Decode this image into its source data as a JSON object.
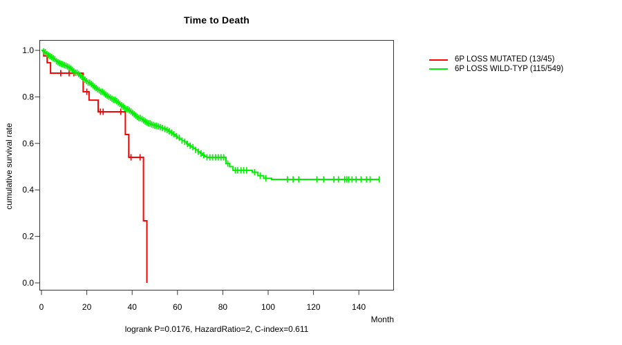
{
  "title": "Time to Death",
  "axes": {
    "x_label": "Month",
    "y_label": "cumulative survival rate",
    "x_ticks": [
      0,
      20,
      40,
      60,
      80,
      100,
      120,
      140
    ],
    "y_ticks": [
      "0.0",
      "0.2",
      "0.4",
      "0.6",
      "0.8",
      "1.0"
    ]
  },
  "caption": "logrank P=0.0176, HazardRatio=2, C-index=0.611",
  "legend": [
    {
      "label": "6P LOSS MUTATED (13/45)",
      "color": "#ff0000"
    },
    {
      "label": "6P LOSS WILD-TYP (115/549)",
      "color": "#00ee00"
    }
  ],
  "chart_data": {
    "type": "line",
    "subtype": "kaplan-meier-step",
    "title": "Time to Death",
    "xlabel": "Month",
    "ylabel": "cumulative survival rate",
    "xlim": [
      0,
      155
    ],
    "ylim": [
      0.0,
      1.0
    ],
    "grid": false,
    "legend_position": "right-outside",
    "annotation": "logrank P=0.0176, HazardRatio=2, C-index=0.611",
    "series": [
      {
        "name": "6P LOSS MUTATED (13/45)",
        "color": "#ff0000",
        "events": "13/45",
        "steps": [
          [
            0,
            1.0
          ],
          [
            1,
            0.976
          ],
          [
            2.5,
            0.947
          ],
          [
            4,
            0.902
          ],
          [
            18.4,
            0.822
          ],
          [
            21,
            0.786
          ],
          [
            25,
            0.736
          ],
          [
            37,
            0.638
          ],
          [
            38.5,
            0.54
          ],
          [
            45,
            0.267
          ],
          [
            46.5,
            0.0
          ]
        ],
        "censor_marks": [
          8.5,
          12.2,
          14.3,
          20,
          26,
          27.2,
          35,
          39.5,
          43.5
        ]
      },
      {
        "name": "6P LOSS WILD-TYP (115/549)",
        "color": "#00ee00",
        "events": "115/549",
        "steps": [
          [
            0,
            1.0
          ],
          [
            0.6,
            0.996
          ],
          [
            1.2,
            0.992
          ],
          [
            1.8,
            0.988
          ],
          [
            2.4,
            0.984
          ],
          [
            3,
            0.979
          ],
          [
            3.6,
            0.975
          ],
          [
            4.2,
            0.971
          ],
          [
            4.8,
            0.966
          ],
          [
            5.4,
            0.962
          ],
          [
            6,
            0.958
          ],
          [
            6.6,
            0.953
          ],
          [
            7.2,
            0.949
          ],
          [
            7.8,
            0.945
          ],
          [
            8.4,
            0.942
          ],
          [
            9,
            0.94
          ],
          [
            9.6,
            0.937
          ],
          [
            10.2,
            0.934
          ],
          [
            11,
            0.93
          ],
          [
            11.8,
            0.926
          ],
          [
            12.6,
            0.922
          ],
          [
            13.4,
            0.916
          ],
          [
            14.2,
            0.91
          ],
          [
            15,
            0.904
          ],
          [
            15.8,
            0.898
          ],
          [
            16.6,
            0.892
          ],
          [
            17.4,
            0.886
          ],
          [
            18.2,
            0.88
          ],
          [
            19,
            0.874
          ],
          [
            19.8,
            0.868
          ],
          [
            20.6,
            0.861
          ],
          [
            21.4,
            0.855
          ],
          [
            22.2,
            0.849
          ],
          [
            23,
            0.843
          ],
          [
            23.8,
            0.838
          ],
          [
            24.6,
            0.833
          ],
          [
            25.4,
            0.828
          ],
          [
            26.2,
            0.822
          ],
          [
            27,
            0.816
          ],
          [
            27.8,
            0.81
          ],
          [
            28.6,
            0.805
          ],
          [
            29.4,
            0.801
          ],
          [
            30.2,
            0.797
          ],
          [
            31,
            0.792
          ],
          [
            31.8,
            0.787
          ],
          [
            32.6,
            0.782
          ],
          [
            33.4,
            0.776
          ],
          [
            34.2,
            0.77
          ],
          [
            35,
            0.764
          ],
          [
            35.8,
            0.758
          ],
          [
            36.6,
            0.752
          ],
          [
            37.4,
            0.747
          ],
          [
            38.2,
            0.742
          ],
          [
            39,
            0.737
          ],
          [
            39.8,
            0.731
          ],
          [
            40.6,
            0.725
          ],
          [
            41.4,
            0.719
          ],
          [
            42.2,
            0.714
          ],
          [
            43,
            0.709
          ],
          [
            43.8,
            0.704
          ],
          [
            44.6,
            0.699
          ],
          [
            45.4,
            0.694
          ],
          [
            46.2,
            0.69
          ],
          [
            47,
            0.686
          ],
          [
            48,
            0.682
          ],
          [
            49,
            0.679
          ],
          [
            50,
            0.676
          ],
          [
            51,
            0.673
          ],
          [
            52,
            0.67
          ],
          [
            53,
            0.666
          ],
          [
            54,
            0.662
          ],
          [
            55,
            0.658
          ],
          [
            56,
            0.652
          ],
          [
            57,
            0.646
          ],
          [
            58,
            0.639
          ],
          [
            59,
            0.631
          ],
          [
            60,
            0.624
          ],
          [
            61,
            0.618
          ],
          [
            62,
            0.612
          ],
          [
            63,
            0.607
          ],
          [
            64,
            0.598
          ],
          [
            65,
            0.59
          ],
          [
            66,
            0.584
          ],
          [
            67,
            0.578
          ],
          [
            68,
            0.572
          ],
          [
            69,
            0.564
          ],
          [
            70,
            0.557
          ],
          [
            71,
            0.549
          ],
          [
            72,
            0.543
          ],
          [
            73,
            0.54
          ],
          [
            81.4,
            0.513
          ],
          [
            83,
            0.5
          ],
          [
            84.5,
            0.484
          ],
          [
            93,
            0.476
          ],
          [
            95.5,
            0.461
          ],
          [
            98,
            0.45
          ],
          [
            101.5,
            0.445
          ],
          [
            149,
            0.445
          ]
        ],
        "censor_marks": [
          1,
          1.7,
          2.4,
          3.1,
          3.8,
          4.5,
          5.2,
          5.9,
          6.6,
          7.3,
          8,
          8.7,
          9.4,
          10.1,
          10.8,
          11.5,
          12.2,
          12.9,
          13.6,
          14.3,
          15,
          15.7,
          16.4,
          17.1,
          17.8,
          18.5,
          19.2,
          19.9,
          20.6,
          21.3,
          22,
          22.7,
          23.4,
          24.1,
          24.8,
          25.5,
          26.2,
          26.9,
          27.6,
          28.3,
          29,
          29.7,
          30.4,
          31.1,
          31.8,
          32.5,
          33.2,
          33.9,
          34.6,
          35.3,
          36,
          36.7,
          37.4,
          38.1,
          38.8,
          39.5,
          40.2,
          40.9,
          41.6,
          42.3,
          43,
          43.7,
          44.4,
          45.1,
          45.8,
          46.5,
          47.2,
          47.9,
          48.6,
          49.3,
          50,
          50.8,
          51.6,
          52.4,
          53.4,
          54.4,
          55.4,
          56.4,
          57.4,
          58.4,
          59.6,
          60.8,
          62,
          63.2,
          64.4,
          65.6,
          66.8,
          68,
          69.2,
          70.4,
          71.6,
          73,
          74.3,
          75.5,
          76.8,
          78,
          79.2,
          80.4,
          82.2,
          85.5,
          86.5,
          88,
          89.2,
          90.5,
          94,
          96.5,
          99,
          108.5,
          111,
          113.5,
          121.5,
          124.5,
          129,
          131,
          133.8,
          134.7,
          135.6,
          137,
          138.8,
          141,
          143.4,
          145,
          149
        ]
      }
    ]
  }
}
